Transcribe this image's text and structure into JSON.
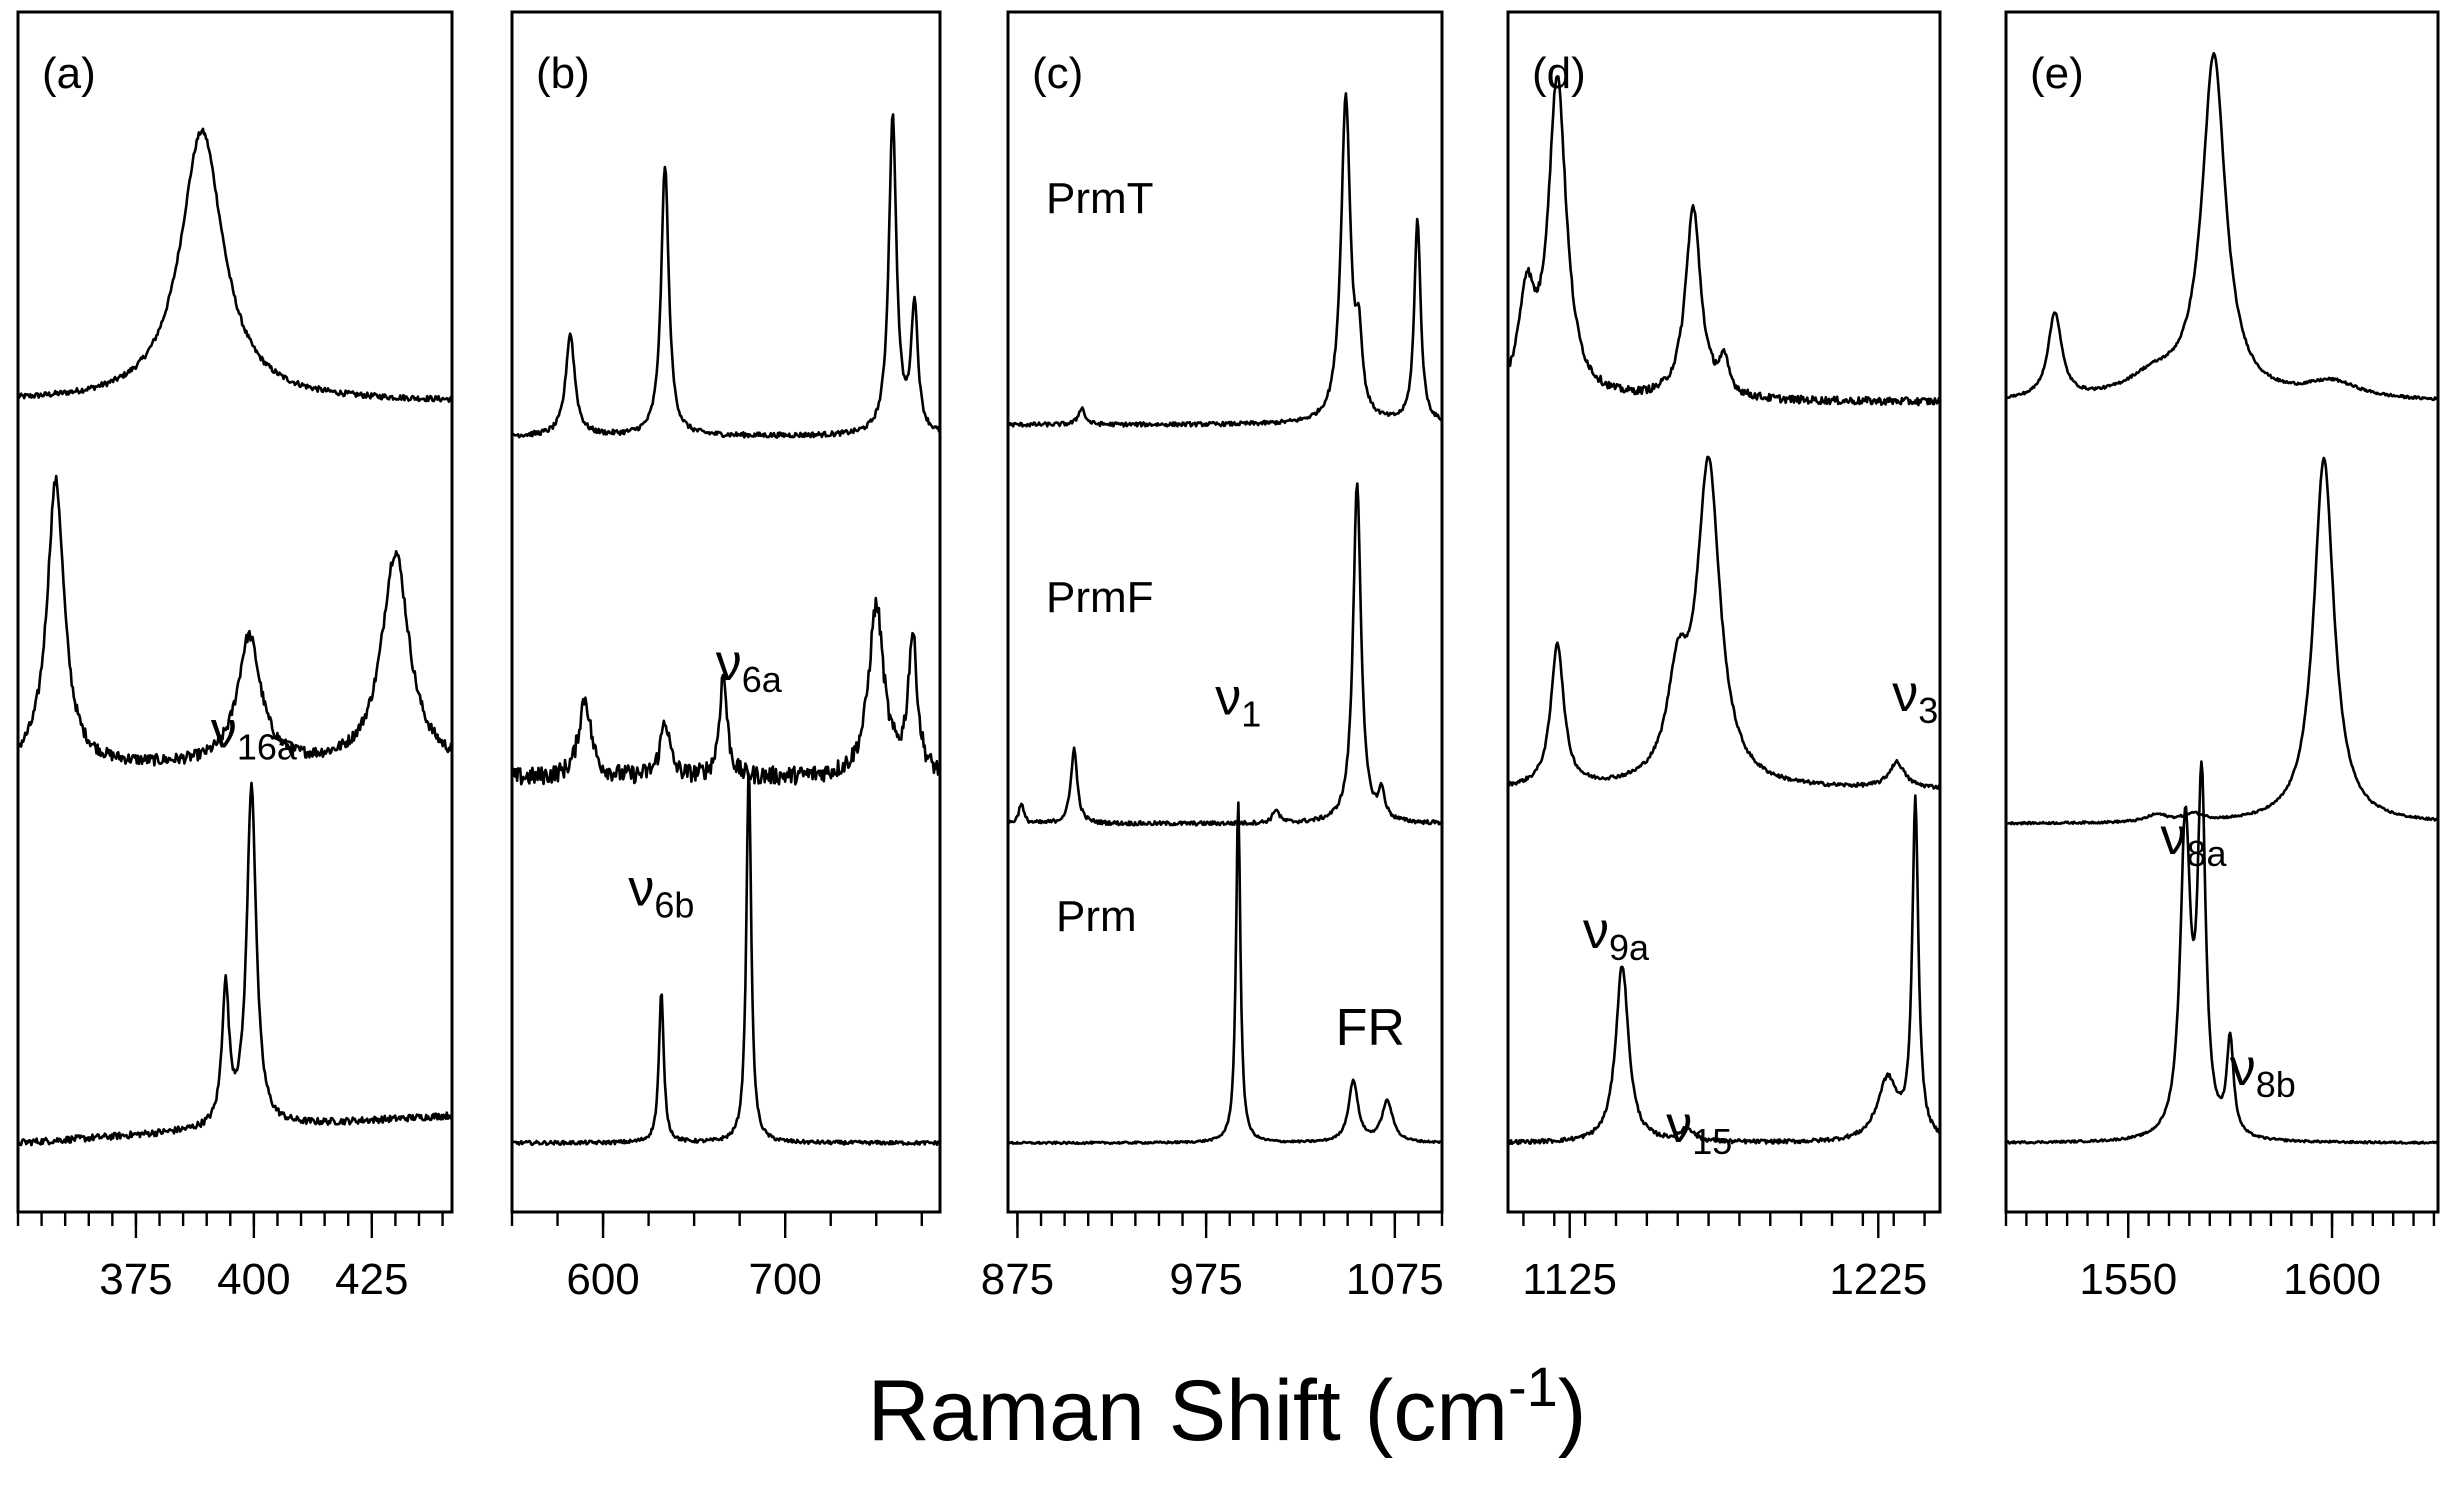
{
  "chart_data": {
    "type": "line",
    "xlabel": "Raman Shift (cm",
    "xlabel_sup": "-1",
    "xlabel_close": ")",
    "yaxis": "none (stacked spectra, arbitrary intensity)",
    "series_names": [
      "PrmT",
      "PrmF",
      "Prm"
    ],
    "panels": [
      {
        "id": "a",
        "label": "(a)",
        "xlim": [
          350,
          442
        ],
        "ticks_major": [
          375,
          400,
          425
        ],
        "tick_minor_step": 5,
        "series": [
          {
            "name": "PrmT",
            "offset": 0.7,
            "scale": 0.25,
            "noise": 0.01,
            "peaks": [
              [
                389,
                0.95,
                5.5
              ]
            ]
          },
          {
            "name": "PrmF",
            "offset": 0.38,
            "scale": 0.25,
            "noise": 0.02,
            "peaks": [
              [
                358,
                1.0,
                2.2
              ],
              [
                399,
                0.45,
                3.0
              ],
              [
                430,
                0.75,
                3.5
              ]
            ]
          },
          {
            "name": "Prm",
            "offset": 0.05,
            "scale": 0.3,
            "noise": 0.01,
            "baseline_slope": 0.08,
            "peaks": [
              [
                394,
                0.4,
                0.9
              ],
              [
                399.5,
                1.0,
                1.2
              ]
            ]
          }
        ],
        "annotations": [
          {
            "text": "ν",
            "sub": "16a",
            "x": 400,
            "series": "Prm",
            "dy": -0.06
          }
        ]
      },
      {
        "id": "b",
        "label": "(b)",
        "xlim": [
          550,
          785
        ],
        "ticks_major": [
          600,
          700
        ],
        "tick_minor_step": 25,
        "series": [
          {
            "name": "PrmT",
            "offset": 0.67,
            "scale": 0.28,
            "noise": 0.008,
            "peaks": [
              [
                582,
                0.32,
                3.0
              ],
              [
                634,
                0.85,
                2.5
              ],
              [
                759,
                1.0,
                2.5
              ],
              [
                771,
                0.4,
                2.2
              ]
            ]
          },
          {
            "name": "PrmF",
            "offset": 0.37,
            "scale": 0.2,
            "noise": 0.04,
            "peaks": [
              [
                590,
                0.35,
                4.0
              ],
              [
                634,
                0.25,
                3.0
              ],
              [
                666,
                0.45,
                2.5
              ],
              [
                750,
                0.75,
                5.0
              ],
              [
                770,
                0.6,
                3.0
              ]
            ]
          },
          {
            "name": "Prm",
            "offset": 0.05,
            "scale": 0.33,
            "noise": 0.005,
            "peaks": [
              [
                632,
                0.4,
                1.6
              ],
              [
                680,
                1.0,
                1.6
              ]
            ]
          }
        ],
        "annotations": [
          {
            "text": "ν",
            "sub": "6b",
            "x": 632,
            "series": "Prm",
            "dy": -0.06
          },
          {
            "text": "ν",
            "sub": "6a",
            "x": 680,
            "series": "Prm",
            "dy": -0.06
          }
        ]
      },
      {
        "id": "c",
        "label": "(c)",
        "xlim": [
          870,
          1100
        ],
        "ticks_major": [
          875,
          975,
          1075
        ],
        "tick_minor_step": 12.5,
        "series": [
          {
            "name": "PrmT",
            "offset": 0.68,
            "scale": 0.3,
            "noise": 0.006,
            "peaks": [
              [
                909,
                0.05,
                2.0
              ],
              [
                1049,
                0.95,
                3.0
              ],
              [
                1087,
                0.6,
                2.0
              ],
              [
                1056,
                0.2,
                2.0
              ]
            ]
          },
          {
            "name": "PrmF",
            "offset": 0.33,
            "scale": 0.3,
            "noise": 0.006,
            "peaks": [
              [
                877,
                0.06,
                1.5
              ],
              [
                905,
                0.22,
                2.0
              ],
              [
                1012,
                0.04,
                2.0
              ],
              [
                1055,
                1.0,
                2.5
              ],
              [
                1068,
                0.08,
                2.0
              ]
            ]
          },
          {
            "name": "Prm",
            "offset": 0.05,
            "scale": 0.3,
            "noise": 0.003,
            "peaks": [
              [
                992,
                1.0,
                1.4
              ],
              [
                1053,
                0.18,
                3.0
              ],
              [
                1071,
                0.12,
                3.5
              ]
            ]
          }
        ],
        "annotations": [
          {
            "text": "ν",
            "sub": "1",
            "x": 992,
            "series": "Prm",
            "dy": -0.06
          },
          {
            "text": "FR",
            "sub": "",
            "x": 1062,
            "series": "Prm",
            "dy": -0.06
          }
        ],
        "series_labels": [
          {
            "text": "PrmT",
            "series": "PrmT"
          },
          {
            "text": "PrmF",
            "series": "PrmF"
          },
          {
            "text": "Prm",
            "series": "Prm"
          }
        ]
      },
      {
        "id": "d",
        "label": "(d)",
        "xlim": [
          1105,
          1245
        ],
        "ticks_major": [
          1125,
          1225
        ],
        "tick_minor_step": 10,
        "series": [
          {
            "name": "PrmT",
            "offset": 0.7,
            "scale": 0.28,
            "noise": 0.012,
            "peaks": [
              [
                1121,
                1.0,
                3.5
              ],
              [
                1111,
                0.3,
                3.0
              ],
              [
                1165,
                0.6,
                3.0
              ],
              [
                1175,
                0.1,
                2.0
              ]
            ]
          },
          {
            "name": "PrmF",
            "offset": 0.36,
            "scale": 0.28,
            "noise": 0.006,
            "peaks": [
              [
                1121,
                0.45,
                2.5
              ],
              [
                1170,
                1.0,
                4.5
              ],
              [
                1160,
                0.3,
                4.0
              ],
              [
                1231,
                0.08,
                3.0
              ]
            ]
          },
          {
            "name": "Prm",
            "offset": 0.05,
            "scale": 0.3,
            "noise": 0.006,
            "peaks": [
              [
                1142,
                0.52,
                2.5
              ],
              [
                1163,
                0.04,
                2.5
              ],
              [
                1228,
                0.18,
                4.0
              ],
              [
                1237,
                0.98,
                1.2
              ]
            ]
          }
        ],
        "annotations": [
          {
            "text": "ν",
            "sub": "9a",
            "x": 1140,
            "series": "Prm",
            "dy": -0.06
          },
          {
            "text": "ν",
            "sub": "15",
            "x": 1167,
            "series": "Prm",
            "dy": 0.02
          },
          {
            "text": "ν",
            "sub": "3",
            "x": 1237,
            "series": "Prm",
            "dy": -0.06
          }
        ]
      },
      {
        "id": "e",
        "label": "(e)",
        "xlim": [
          1520,
          1626
        ],
        "ticks_major": [
          1550,
          1600
        ],
        "tick_minor_step": 5,
        "series": [
          {
            "name": "PrmT",
            "offset": 0.7,
            "scale": 0.3,
            "noise": 0.004,
            "peaks": [
              [
                1532,
                0.25,
                2.0
              ],
              [
                1571,
                1.0,
                3.5
              ],
              [
                1556,
                0.06,
                8.0
              ],
              [
                1600,
                0.05,
                8.0
              ]
            ]
          },
          {
            "name": "PrmF",
            "offset": 0.33,
            "scale": 0.32,
            "noise": 0.003,
            "peaks": [
              [
                1598,
                1.0,
                3.0
              ],
              [
                1557,
                0.02,
                3.0
              ],
              [
                1566,
                0.02,
                3.0
              ]
            ]
          },
          {
            "name": "Prm",
            "offset": 0.05,
            "scale": 0.3,
            "noise": 0.003,
            "peaks": [
              [
                1564,
                0.9,
                1.5
              ],
              [
                1568,
                1.0,
                1.2
              ],
              [
                1575,
                0.28,
                1.0
              ]
            ]
          }
        ],
        "annotations": [
          {
            "text": "ν",
            "sub": "8a",
            "x": 1566,
            "series": "Prm",
            "dy": -0.06
          },
          {
            "text": "ν",
            "sub": "8b",
            "x": 1583,
            "series": "Prm",
            "dy": -0.03
          }
        ]
      }
    ]
  }
}
